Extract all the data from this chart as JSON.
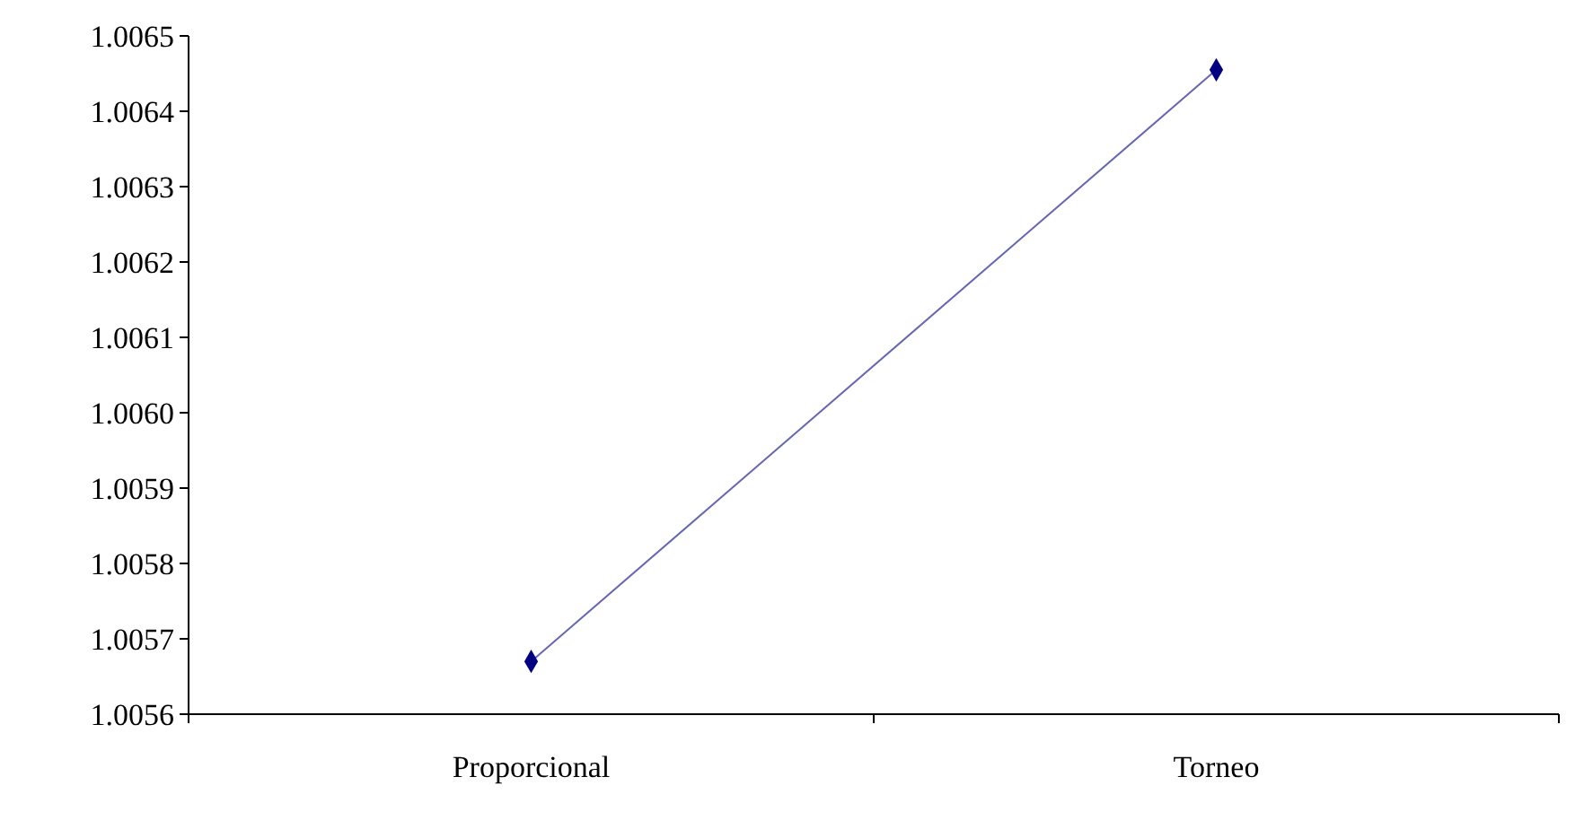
{
  "chart_data": {
    "type": "line",
    "categories": [
      "Proporcional",
      "Torneo"
    ],
    "series": [
      {
        "color": "#000080",
        "values": [
          1.00567,
          1.006455
        ]
      }
    ],
    "ylim": [
      1.0056,
      1.0065
    ],
    "yticks": [
      1.0056,
      1.0057,
      1.0058,
      1.0059,
      {
        "value": 1.006,
        "label": "1.0060"
      },
      1.0061,
      1.0062,
      1.0063,
      1.0064,
      1.0065
    ],
    "marker": "diamond",
    "line_style": "solid"
  }
}
